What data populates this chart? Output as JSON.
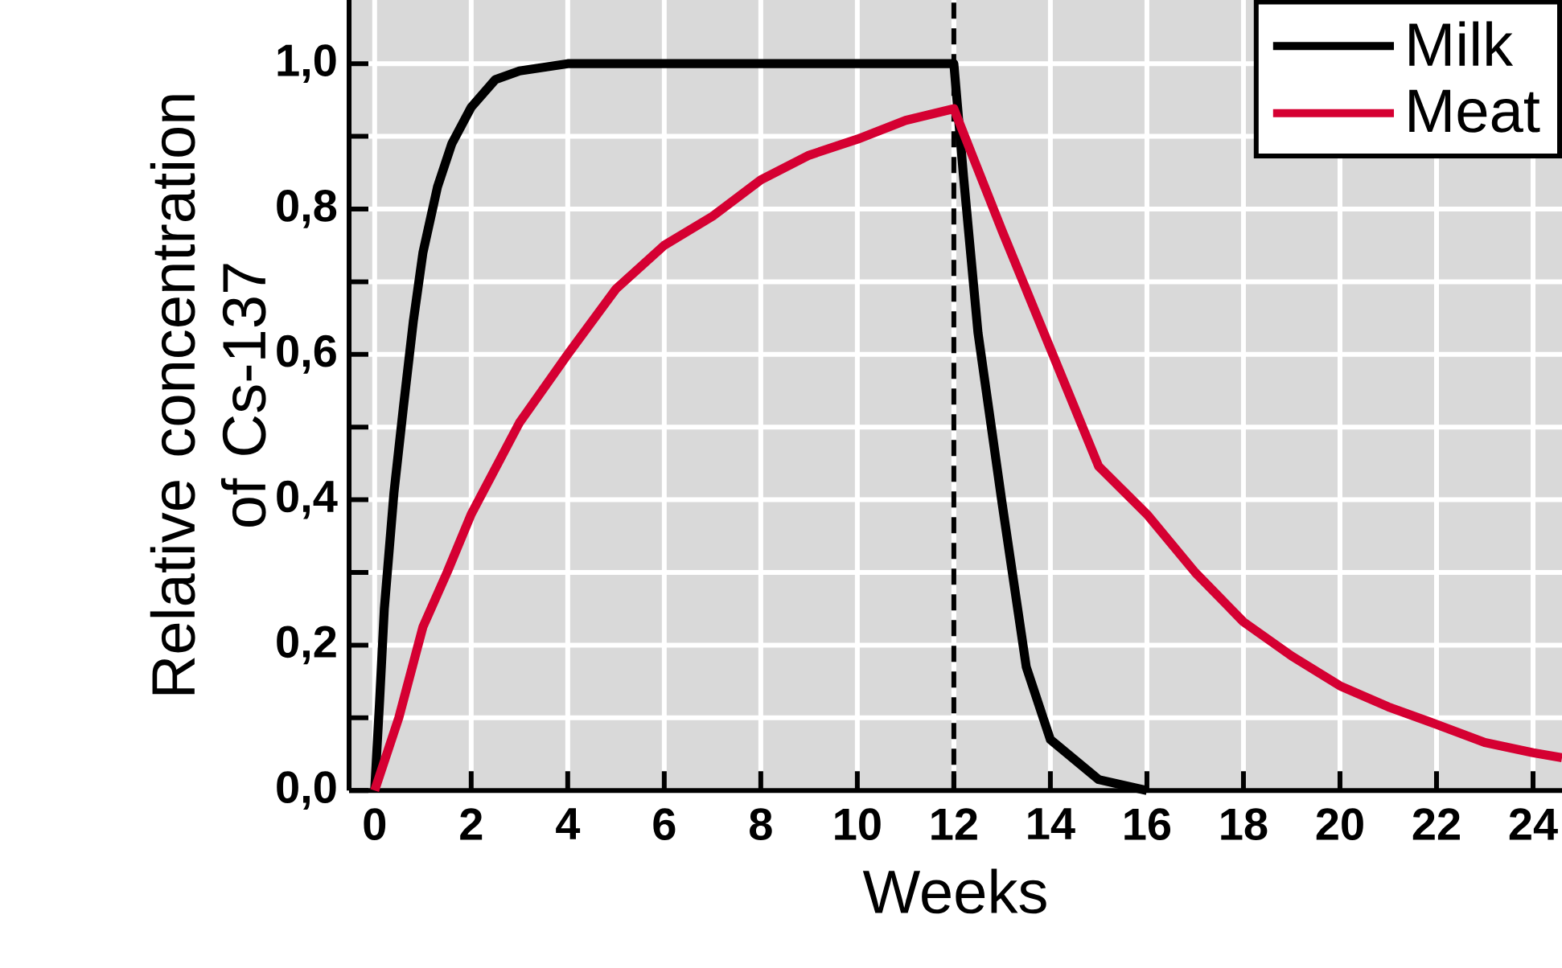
{
  "chart_data": {
    "type": "line",
    "xlabel": "Weeks",
    "ylabel": "Relative concentration of Cs-137",
    "xlim": [
      -0.53,
      24.6
    ],
    "ylim": [
      0,
      1.088
    ],
    "xticks": [
      0,
      2,
      4,
      6,
      8,
      10,
      12,
      14,
      16,
      18,
      20,
      22,
      24
    ],
    "yticks": [
      {
        "value": 0,
        "label": "0,0"
      },
      {
        "value": 0.1,
        "label": null
      },
      {
        "value": 0.2,
        "label": "0,2"
      },
      {
        "value": 0.3,
        "label": null
      },
      {
        "value": 0.4,
        "label": "0,4"
      },
      {
        "value": 0.5,
        "label": null
      },
      {
        "value": 0.6,
        "label": "0,6"
      },
      {
        "value": 0.7,
        "label": null
      },
      {
        "value": 0.8,
        "label": "0,8"
      },
      {
        "value": 0.9,
        "label": null
      },
      {
        "value": 1.0,
        "label": "1,0"
      }
    ],
    "grid": true,
    "legend": "top right",
    "marker": "none",
    "line_style": "solid",
    "ref_lines": [
      {
        "axis": "x",
        "value": 12,
        "color": "#000000",
        "line_style": "dashed"
      }
    ],
    "series": [
      {
        "name": "Milk",
        "color": "#000000",
        "x": [
          0,
          0.1,
          0.2,
          0.4,
          0.6,
          0.8,
          1,
          1.3,
          1.6,
          2,
          2.5,
          3,
          4,
          12,
          12.2,
          12.5,
          13,
          13.5,
          14,
          15,
          16
        ],
        "values": [
          0,
          0.12,
          0.25,
          0.41,
          0.53,
          0.645,
          0.74,
          0.83,
          0.89,
          0.94,
          0.978,
          0.99,
          1.0,
          1.0,
          0.845,
          0.63,
          0.395,
          0.17,
          0.07,
          0.015,
          0
        ]
      },
      {
        "name": "Meat",
        "color": "#d50032",
        "x": [
          0,
          0.5,
          1,
          1.5,
          2,
          3,
          4,
          5,
          6,
          7,
          8,
          9,
          10,
          11,
          12,
          13,
          14,
          15,
          16,
          17,
          18,
          19,
          20,
          21,
          22,
          23,
          24,
          24.6
        ],
        "values": [
          0,
          0.1,
          0.225,
          0.3,
          0.38,
          0.506,
          0.6,
          0.69,
          0.75,
          0.79,
          0.84,
          0.874,
          0.896,
          0.922,
          0.938,
          0.77,
          0.608,
          0.446,
          0.38,
          0.3,
          0.232,
          0.185,
          0.144,
          0.115,
          0.091,
          0.066,
          0.052,
          0.045
        ]
      }
    ]
  }
}
